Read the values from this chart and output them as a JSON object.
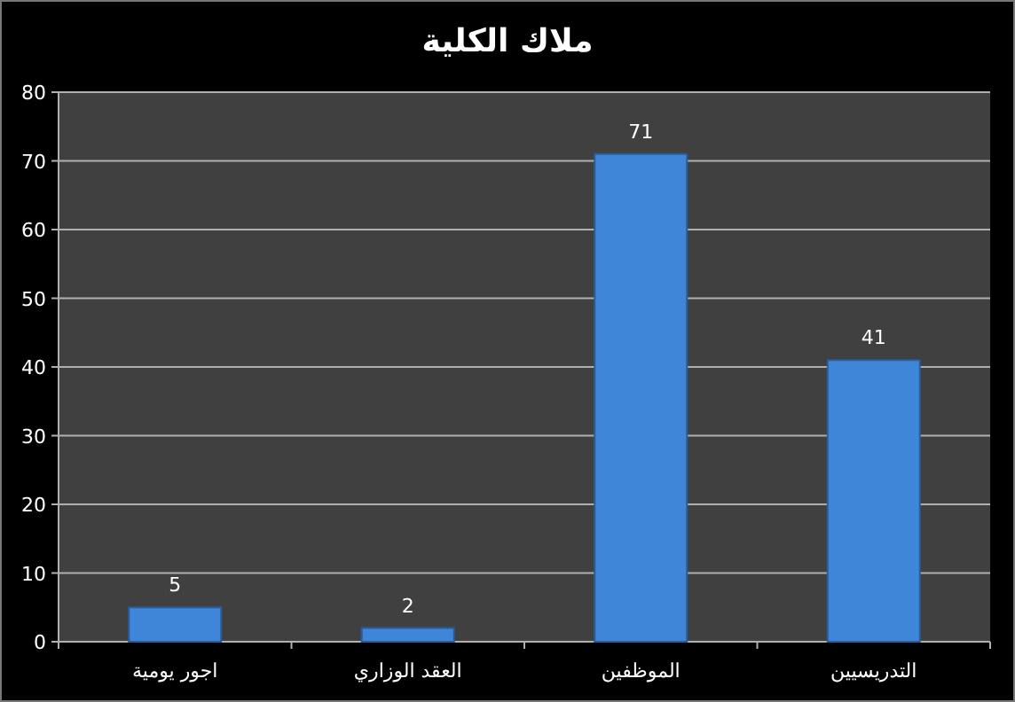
{
  "chart_data": {
    "type": "bar",
    "title": "ملاك الكلية",
    "categories": [
      "اجور يومية",
      "العقد الوزاري",
      "الموظفين",
      "التدريسيين"
    ],
    "values": [
      5,
      2,
      71,
      41
    ],
    "color": "#3f85d8",
    "ylim": [
      0,
      80
    ],
    "yticks": [
      0,
      10,
      20,
      30,
      40,
      50,
      60,
      70,
      80
    ],
    "grid": "y",
    "data_labels": true
  }
}
